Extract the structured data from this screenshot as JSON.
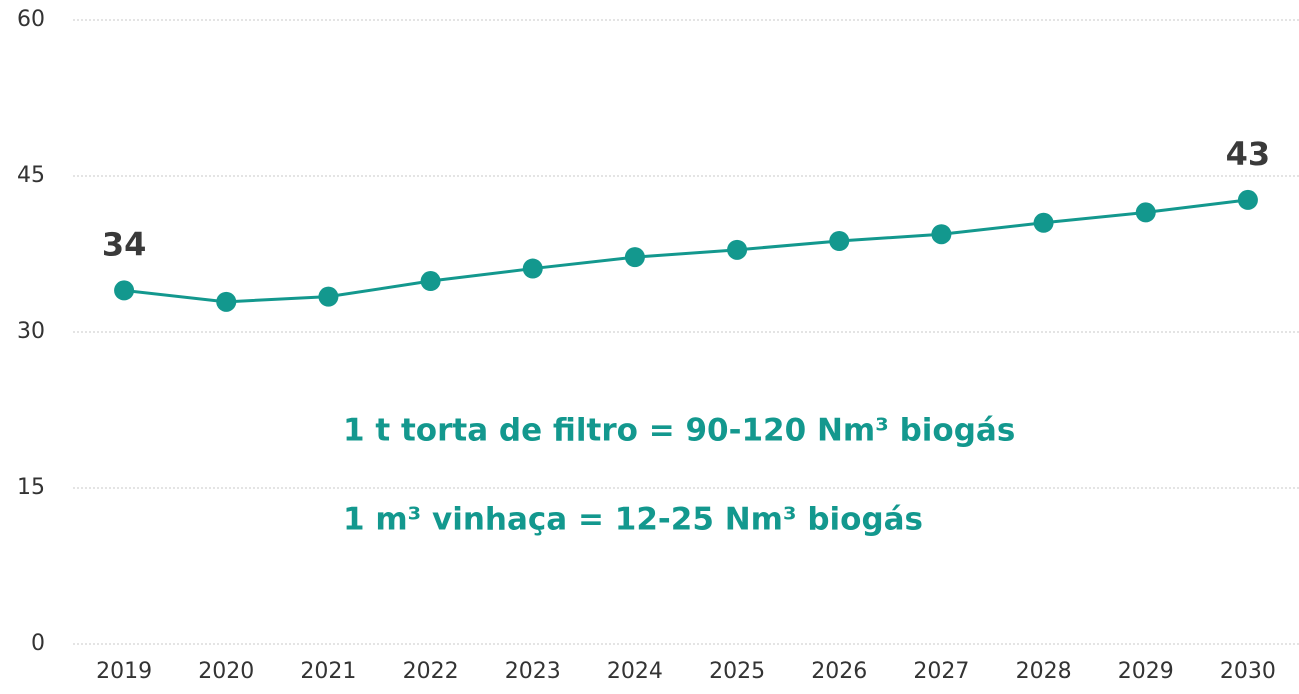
{
  "chart_data": {
    "type": "line",
    "categories": [
      "2019",
      "2020",
      "2021",
      "2022",
      "2023",
      "2024",
      "2025",
      "2026",
      "2027",
      "2028",
      "2029",
      "2030"
    ],
    "series": [
      {
        "color": "#13988e",
        "values": [
          34.0,
          32.9,
          33.4,
          34.9,
          36.1,
          37.2,
          37.9,
          38.75,
          39.4,
          40.5,
          41.5,
          42.7
        ],
        "value_labels": [
          "34",
          null,
          null,
          null,
          null,
          null,
          null,
          null,
          null,
          null,
          null,
          "43"
        ]
      }
    ],
    "ylim": [
      0,
      60
    ],
    "yticks": [
      0,
      15,
      30,
      45,
      60
    ],
    "grid": true,
    "annotations": [
      "1 t torta de filtro = 90-120 Nm³ biogás",
      "1 m³ vinhaça = 12-25 Nm³ biogás"
    ],
    "annotation_color": "#13988e"
  }
}
